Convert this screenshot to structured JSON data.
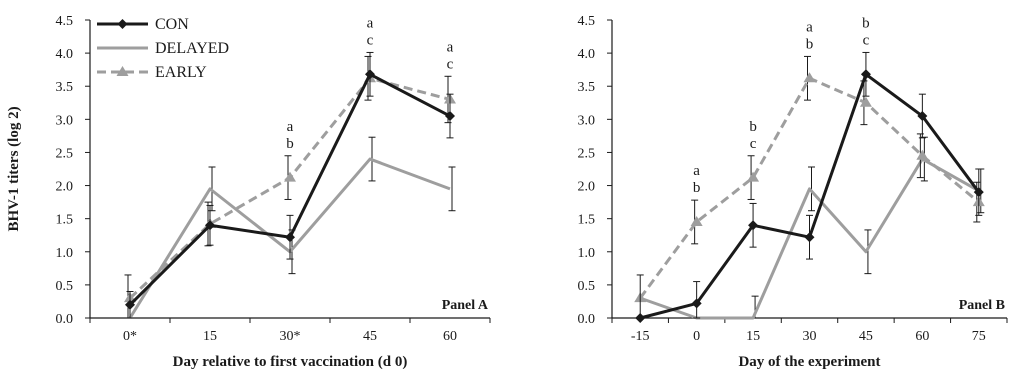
{
  "chart_data": [
    {
      "type": "line",
      "panel_label": "Panel A",
      "xlabel": "Day relative to first vaccination (d 0)",
      "ylabel": "BHV-1 titers (log 2)",
      "categories": [
        "0*",
        "15",
        "30*",
        "45",
        "60"
      ],
      "ylim": [
        0,
        4.5
      ],
      "yticks": [
        "0.0",
        "0.5",
        "1.0",
        "1.5",
        "2.0",
        "2.5",
        "3.0",
        "3.5",
        "4.0",
        "4.5"
      ],
      "legend_position": "top-left",
      "series": [
        {
          "name": "CON",
          "color": "#1a1a1a",
          "style": "solid",
          "marker": "diamond",
          "values": [
            0.2,
            1.4,
            1.22,
            3.68,
            3.05
          ],
          "errors": [
            0.2,
            0.3,
            0.33,
            0.33,
            0.33
          ]
        },
        {
          "name": "DELAYED",
          "color": "#9e9e9e",
          "style": "solid",
          "marker": "none",
          "values": [
            0.0,
            1.95,
            1.0,
            2.4,
            1.95
          ],
          "errors": [
            0.0,
            0.33,
            0.33,
            0.33,
            0.33
          ]
        },
        {
          "name": "EARLY",
          "color": "#9e9e9e",
          "style": "dashed",
          "marker": "triangle",
          "values": [
            0.3,
            1.42,
            2.12,
            3.62,
            3.3
          ],
          "errors": [
            0.35,
            0.33,
            0.33,
            0.33,
            0.35
          ]
        }
      ],
      "annotations": [
        {
          "category": "30*",
          "letters": [
            "a",
            "b"
          ]
        },
        {
          "category": "45",
          "letters": [
            "a",
            "c"
          ]
        },
        {
          "category": "60",
          "letters": [
            "a",
            "c"
          ]
        }
      ]
    },
    {
      "type": "line",
      "panel_label": "Panel B",
      "xlabel": "Day of the experiment",
      "ylabel": "",
      "categories": [
        "-15",
        "0",
        "15",
        "30",
        "45",
        "60",
        "75"
      ],
      "ylim": [
        0,
        4.5
      ],
      "yticks": [
        "0.0",
        "0.5",
        "1.0",
        "1.5",
        "2.0",
        "2.5",
        "3.0",
        "3.5",
        "4.0",
        "4.5"
      ],
      "series": [
        {
          "name": "CON",
          "color": "#1a1a1a",
          "style": "solid",
          "marker": "diamond",
          "values": [
            0.0,
            0.22,
            1.4,
            1.22,
            3.68,
            3.05,
            1.9
          ],
          "errors": [
            0.65,
            0.33,
            0.33,
            0.33,
            0.33,
            0.33,
            0.35
          ]
        },
        {
          "name": "DELAYED",
          "color": "#9e9e9e",
          "style": "solid",
          "marker": "none",
          "values": [
            0.3,
            0.0,
            0.0,
            1.95,
            1.0,
            2.4,
            1.92
          ],
          "errors": [
            0.0,
            0.0,
            0.33,
            0.33,
            0.33,
            0.33,
            0.33
          ]
        },
        {
          "name": "EARLY",
          "color": "#9e9e9e",
          "style": "dashed",
          "marker": "triangle",
          "values": [
            0.3,
            1.45,
            2.12,
            3.62,
            3.25,
            2.45,
            1.75
          ],
          "errors": [
            0.0,
            0.33,
            0.33,
            0.33,
            0.33,
            0.33,
            0.3
          ]
        }
      ],
      "annotations": [
        {
          "category": "0",
          "letters": [
            "a",
            "b"
          ]
        },
        {
          "category": "15",
          "letters": [
            "b",
            "c"
          ]
        },
        {
          "category": "30",
          "letters": [
            "a",
            "b"
          ]
        },
        {
          "category": "45",
          "letters": [
            "b",
            "c"
          ]
        }
      ]
    }
  ]
}
